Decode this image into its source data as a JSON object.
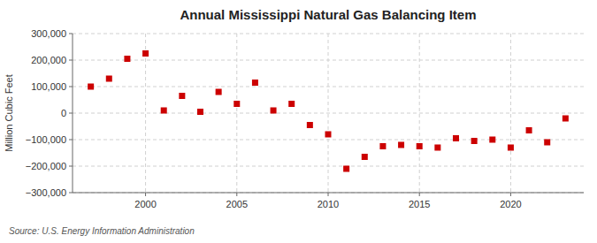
{
  "chart_data": {
    "type": "scatter",
    "title": "Annual Mississippi Natural Gas Balancing Item",
    "ylabel": "Million Cubic Feet",
    "annotations": [
      "Source: U.S. Energy Information Administration"
    ],
    "color": "#cc0000",
    "marker": "square",
    "grid": true,
    "x": [
      1997,
      1998,
      1999,
      2000,
      2001,
      2002,
      2003,
      2004,
      2005,
      2006,
      2007,
      2008,
      2009,
      2010,
      2011,
      2012,
      2013,
      2014,
      2015,
      2016,
      2017,
      2018,
      2019,
      2020,
      2021,
      2022,
      2023
    ],
    "values": [
      100000,
      130000,
      205000,
      225000,
      10000,
      65000,
      5000,
      80000,
      35000,
      115000,
      10000,
      35000,
      -45000,
      -80000,
      -210000,
      -165000,
      -125000,
      -120000,
      -125000,
      -130000,
      -95000,
      -105000,
      -100000,
      -130000,
      -65000,
      -110000,
      -20000
    ],
    "xlim": [
      1996,
      2024
    ],
    "ylim": [
      -300000,
      300000
    ],
    "xticks": [
      2000,
      2005,
      2010,
      2015,
      2020
    ],
    "yticks": [
      {
        "value": -300000,
        "label": "−300,000"
      },
      {
        "value": -200000,
        "label": "−200,000"
      },
      {
        "value": -100000,
        "label": "−100,000"
      },
      0,
      {
        "value": 100000,
        "label": "100,000"
      },
      {
        "value": 200000,
        "label": "200,000"
      },
      {
        "value": 300000,
        "label": "300,000"
      }
    ]
  }
}
